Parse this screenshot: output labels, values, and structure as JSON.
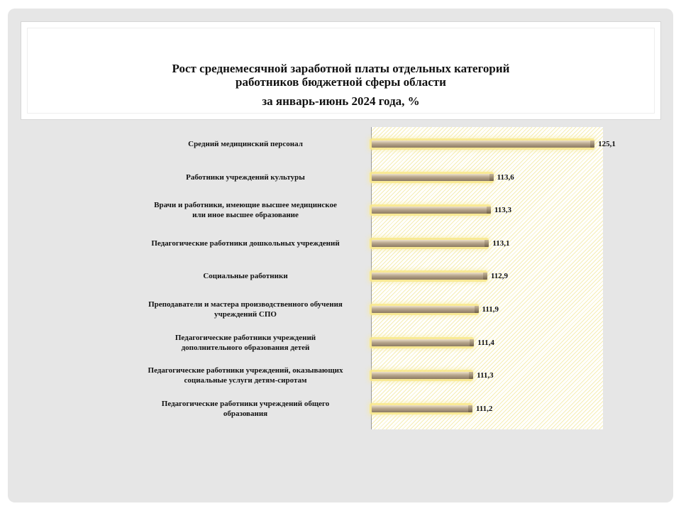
{
  "slide": {
    "title_line1": "Рост среднемесячной заработной платы отдельных категорий",
    "title_line2": "работников бюджетной сферы области",
    "title_line3": "за январь-июнь 2024 года, %"
  },
  "chart_data": {
    "type": "bar",
    "orientation": "horizontal",
    "title": "Рост среднемесячной заработной платы отдельных категорий работников бюджетной сферы области за январь-июнь 2024 года, %",
    "categories": [
      [
        "Средний  медицинский  персонал"
      ],
      [
        "Работники   учреждений  культуры"
      ],
      [
        "Врачи  и работники,   имеющие  высшее медицинское",
        "или  иное  высшее образование"
      ],
      [
        "Педагогические   работники   дошкольных   учреждений"
      ],
      [
        "Социальные   работники"
      ],
      [
        "Преподаватели   и мастера  производственного   обучения",
        "учреждений   СПО"
      ],
      [
        "Педагогические   работники учреждений",
        "дополнительного   образования   детей"
      ],
      [
        "Педагогические   работники   учреждений,   оказывающих",
        "социальные   услуги  детям-сиротам"
      ],
      [
        "Педагогические   работники  учреждений  общего",
        "образования"
      ]
    ],
    "values": [
      125.1,
      113.6,
      113.3,
      113.1,
      112.9,
      111.9,
      111.4,
      111.3,
      111.2
    ],
    "value_labels": [
      "125,1",
      "113,6",
      "113,3",
      "113,1",
      "112,9",
      "111,9",
      "111,4",
      "111,3",
      "111,2"
    ],
    "xlim": [
      100,
      126.3
    ],
    "grid": false,
    "legend": "none",
    "colors": {
      "bar": "#a8967c",
      "glow": "#f5e27a",
      "plot_hatch": "#f5edb4"
    }
  }
}
